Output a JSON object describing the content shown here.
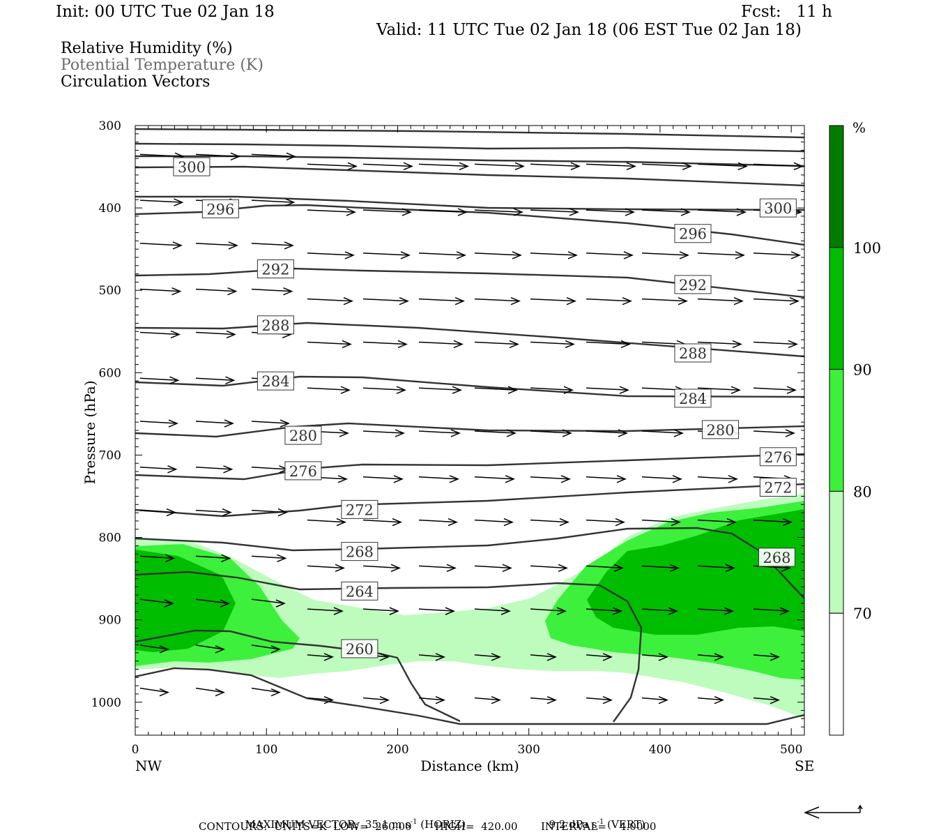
{
  "header": {
    "init": "Init: 00 UTC Tue 02 Jan 18",
    "fcst": "Fcst:   11 h",
    "valid": "Valid: 11 UTC Tue 02 Jan 18 (06 EST Tue 02 Jan 18)"
  },
  "legend_text": {
    "rh": "Relative Humidity (%)",
    "theta": "Potential Temperature (K)",
    "vectors": "Circulation Vectors"
  },
  "footer": {
    "max_vector": "MAXIMUM VECTOR:  35.1 m s",
    "max_vector_exp": "-1",
    "max_vector_horiz": " (HORIZ)",
    "max_vector_vert": "9.2 dPa s",
    "max_vector_vert_exp": "-1",
    "max_vector_vert_label": " (VERT)",
    "contours": "CONTOURS:  UNITS=K  LOW=  260.00       HIGH=  420.00       INTERVAL=    4.0000"
  },
  "colors": {
    "rh_70_80": "#bdfcbd",
    "rh_80_90": "#3cf03c",
    "rh_90_100": "#00bd00",
    "rh_100": "#007d00",
    "contour": "#333333"
  },
  "chart_data": {
    "type": "cross-section",
    "xlabel": "Distance (km)",
    "ylabel": "Pressure (hPa)",
    "x_ticks": [
      "0",
      "100",
      "200",
      "300",
      "400",
      "500"
    ],
    "y_ticks": [
      "300",
      "400",
      "500",
      "600",
      "700",
      "800",
      "900",
      "1000"
    ],
    "x_range_km": [
      0,
      510
    ],
    "y_range_hPa": [
      300,
      1040
    ],
    "y_scale": "linear",
    "endpoint_labels": {
      "left": "NW",
      "right": "SE"
    },
    "colorbar": {
      "label": "%",
      "levels": [
        "70",
        "80",
        "90",
        "100"
      ],
      "colors": [
        "#ffffff",
        "#bdfcbd",
        "#3cf03c",
        "#00bd00",
        "#007d00"
      ]
    },
    "theta_contour_labels": [
      {
        "value": "300",
        "x": 43,
        "p": 350
      },
      {
        "value": "300",
        "x": 490,
        "p": 400
      },
      {
        "value": "296",
        "x": 65,
        "p": 401
      },
      {
        "value": "296",
        "x": 425,
        "p": 431
      },
      {
        "value": "292",
        "x": 107,
        "p": 474
      },
      {
        "value": "292",
        "x": 425,
        "p": 493
      },
      {
        "value": "288",
        "x": 107,
        "p": 542
      },
      {
        "value": "288",
        "x": 425,
        "p": 576
      },
      {
        "value": "284",
        "x": 107,
        "p": 610
      },
      {
        "value": "284",
        "x": 425,
        "p": 631
      },
      {
        "value": "280",
        "x": 128,
        "p": 676
      },
      {
        "value": "280",
        "x": 446,
        "p": 669
      },
      {
        "value": "276",
        "x": 128,
        "p": 719
      },
      {
        "value": "276",
        "x": 490,
        "p": 702
      },
      {
        "value": "272",
        "x": 171,
        "p": 766
      },
      {
        "value": "272",
        "x": 490,
        "p": 739
      },
      {
        "value": "268",
        "x": 171,
        "p": 817
      },
      {
        "value": "268",
        "x": 489,
        "p": 824
      },
      {
        "value": "264",
        "x": 171,
        "p": 865
      },
      {
        "value": "260",
        "x": 171,
        "p": 935
      }
    ],
    "max_vector_horiz": "35.1",
    "max_vector_vert": "9.2",
    "contour_interval": "4.0000",
    "contour_low": "260.00",
    "contour_high": "420.00"
  }
}
